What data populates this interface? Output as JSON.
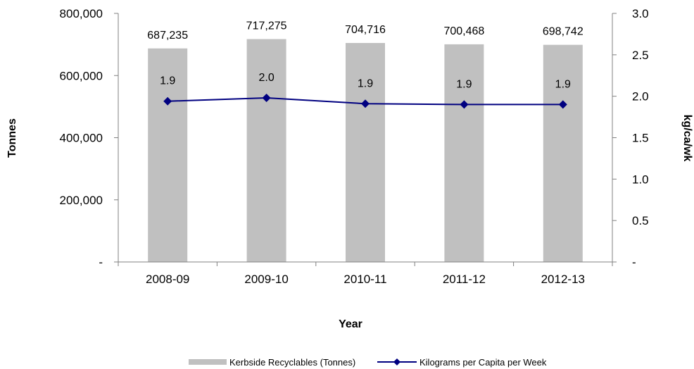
{
  "chart_data": {
    "type": "bar",
    "categories": [
      "2008-09",
      "2009-10",
      "2010-11",
      "2011-12",
      "2012-13"
    ],
    "series": [
      {
        "name": "Kerbside Recyclables (Tonnes)",
        "type": "bar",
        "axis": "left",
        "color": "#c0c0c0",
        "values": [
          687235,
          717275,
          704716,
          700468,
          698742
        ],
        "labels": [
          "687,235",
          "717,275",
          "704,716",
          "700,468",
          "698,742"
        ]
      },
      {
        "name": "Kilograms per Capita per Week",
        "type": "line",
        "axis": "right",
        "color": "#000080",
        "marker": "diamond",
        "values": [
          1.94,
          1.98,
          1.91,
          1.9,
          1.9
        ],
        "labels": [
          "1.9",
          "2.0",
          "1.9",
          "1.9",
          "1.9"
        ]
      }
    ],
    "xlabel": "Year",
    "ylabel": "Tonnes",
    "y2label": "kg/ca/wk",
    "ylim": [
      0,
      800000
    ],
    "y2lim": [
      0,
      3.0
    ],
    "yticks": [
      0,
      200000,
      400000,
      600000,
      800000
    ],
    "ytick_labels": [
      "-",
      "200,000",
      "400,000",
      "600,000",
      "800,000"
    ],
    "y2ticks": [
      0,
      0.5,
      1.0,
      1.5,
      2.0,
      2.5,
      3.0
    ],
    "y2tick_labels": [
      "-",
      "0.5",
      "1.0",
      "1.5",
      "2.0",
      "2.5",
      "3.0"
    ],
    "grid": false,
    "legend_position": "bottom"
  }
}
